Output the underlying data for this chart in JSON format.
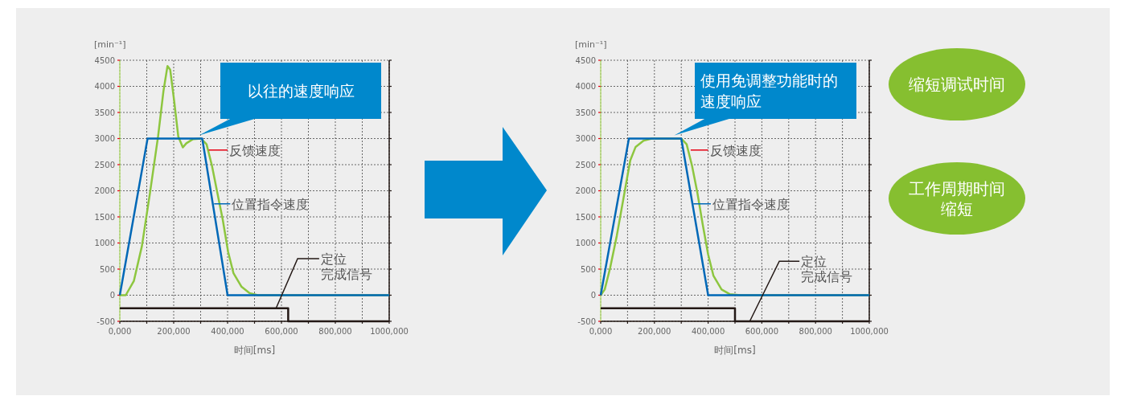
{
  "chart_data": [
    {
      "type": "line",
      "ylabel": "[min⁻¹]",
      "xlabel": "时间[ms]",
      "xlim": [
        0,
        1000
      ],
      "ylim": [
        -500,
        4500
      ],
      "xticks": [
        {
          "value": 0,
          "label": "0,000"
        },
        {
          "value": 100,
          "label": null
        },
        {
          "value": 200,
          "label": "200,000"
        },
        {
          "value": 300,
          "label": null
        },
        {
          "value": 400,
          "label": "400,000"
        },
        {
          "value": 500,
          "label": null
        },
        {
          "value": 600,
          "label": "600,000"
        },
        {
          "value": 700,
          "label": null
        },
        {
          "value": 800,
          "label": "800,000"
        },
        {
          "value": 900,
          "label": null
        },
        {
          "value": 1000,
          "label": "1000,000"
        }
      ],
      "yticks": [
        -500,
        0,
        500,
        1000,
        1500,
        2000,
        2500,
        3000,
        3500,
        4000,
        4500
      ],
      "grid": true,
      "series": [
        {
          "name": "反馈速度",
          "color": "#8dc63f",
          "x": [
            0,
            22,
            52,
            82,
            112,
            142,
            162,
            177,
            187,
            202,
            217,
            234,
            247,
            272,
            302,
            322,
            342,
            362,
            382,
            402,
            422,
            452,
            482,
            512,
            1000
          ],
          "values": [
            0,
            0,
            270,
            940,
            1960,
            3040,
            3910,
            4390,
            4320,
            3710,
            3040,
            2830,
            2910,
            2990,
            3000,
            2890,
            2480,
            1960,
            1450,
            830,
            420,
            160,
            40,
            0,
            0
          ]
        },
        {
          "name": "位置指令速度",
          "color": "#0068b7",
          "x": [
            0,
            103,
            306,
            400,
            1000
          ],
          "values": [
            0,
            3000,
            3000,
            0,
            0
          ]
        },
        {
          "name": "定位完成信号",
          "color": "#231815",
          "x": [
            0,
            625,
            625,
            1000
          ],
          "values": [
            -250,
            -250,
            -500,
            -500
          ]
        }
      ],
      "annotations": [
        "以往的速度响应"
      ]
    },
    {
      "type": "line",
      "ylabel": "[min⁻¹]",
      "xlabel": "时间[ms]",
      "xlim": [
        0,
        1000
      ],
      "ylim": [
        -500,
        4500
      ],
      "xticks": [
        {
          "value": 0,
          "label": "0,000"
        },
        {
          "value": 100,
          "label": null
        },
        {
          "value": 200,
          "label": "200,000"
        },
        {
          "value": 300,
          "label": null
        },
        {
          "value": 400,
          "label": "400,000"
        },
        {
          "value": 500,
          "label": null
        },
        {
          "value": 600,
          "label": "600,000"
        },
        {
          "value": 700,
          "label": null
        },
        {
          "value": 800,
          "label": "800,000"
        },
        {
          "value": 900,
          "label": null
        },
        {
          "value": 1000,
          "label": "1000,000"
        }
      ],
      "yticks": [
        -500,
        0,
        500,
        1000,
        1500,
        2000,
        2500,
        3000,
        3500,
        4000,
        4500
      ],
      "grid": true,
      "series": [
        {
          "name": "反馈速度",
          "color": "#8dc63f",
          "x": [
            0,
            15,
            35,
            60,
            85,
            110,
            130,
            160,
            190,
            300,
            320,
            340,
            360,
            380,
            400,
            420,
            450,
            480,
            520,
            1000
          ],
          "values": [
            0,
            110,
            520,
            1140,
            1860,
            2580,
            2840,
            2960,
            3000,
            3000,
            2890,
            2480,
            1960,
            1350,
            780,
            370,
            110,
            20,
            0,
            0
          ]
        },
        {
          "name": "位置指令速度",
          "color": "#0068b7",
          "x": [
            0,
            105,
            300,
            400,
            1000
          ],
          "values": [
            0,
            3000,
            3000,
            0,
            0
          ]
        },
        {
          "name": "定位完成信号",
          "color": "#231815",
          "x": [
            0,
            500,
            500,
            1000
          ],
          "values": [
            -250,
            -250,
            -500,
            -500
          ]
        }
      ],
      "annotations": [
        "使用免调整功能时的速度响应"
      ]
    },
    {
      "type": "other",
      "annotations": [
        "缩短调试时间",
        "工作周期时间缩短"
      ]
    }
  ]
}
